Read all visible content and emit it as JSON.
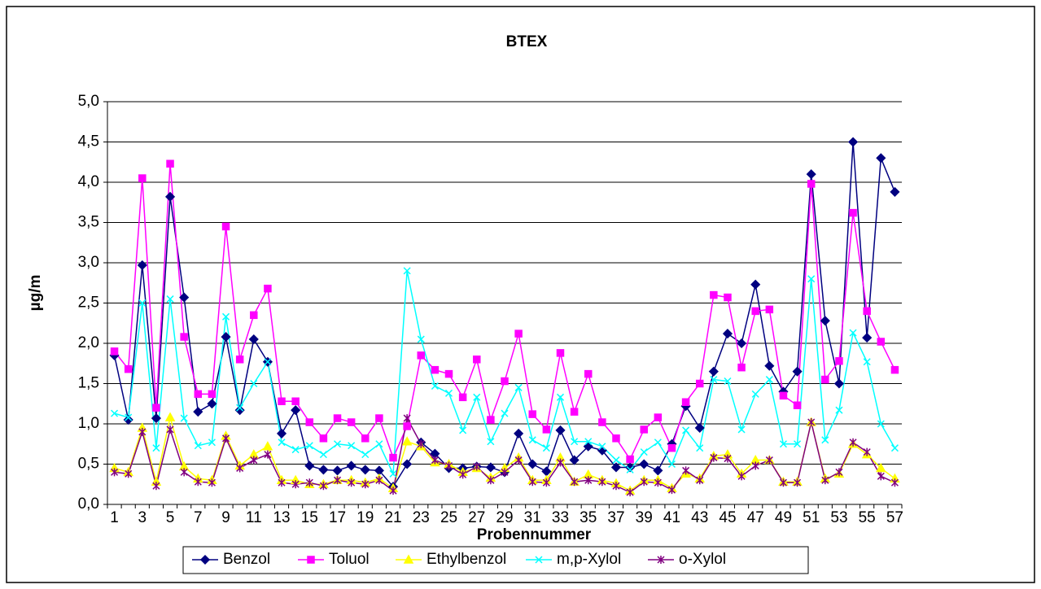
{
  "chart_data": {
    "type": "line",
    "title": "BTEX",
    "x_label": "Probennummer",
    "y_label": "µg/m",
    "categories": [
      1,
      null,
      3,
      null,
      5,
      null,
      7,
      null,
      9,
      null,
      11,
      null,
      13,
      null,
      15,
      null,
      17,
      null,
      19,
      null,
      21,
      null,
      23,
      null,
      25,
      null,
      27,
      null,
      29,
      null,
      31,
      null,
      33,
      null,
      35,
      null,
      37,
      null,
      39,
      null,
      41,
      null,
      43,
      null,
      45,
      null,
      47,
      null,
      49,
      null,
      51,
      null,
      53,
      null,
      55,
      null,
      57
    ],
    "ylim": [
      0,
      5
    ],
    "yticks": [
      {
        "value": 0,
        "label": "0,0"
      },
      {
        "value": 0.5,
        "label": "0,5"
      },
      {
        "value": 1,
        "label": "1,0"
      },
      {
        "value": 1.5,
        "label": "1,5"
      },
      {
        "value": 2,
        "label": "2,0"
      },
      {
        "value": 2.5,
        "label": "2,5"
      },
      {
        "value": 3,
        "label": "3,0"
      },
      {
        "value": 3.5,
        "label": "3,5"
      },
      {
        "value": 4,
        "label": "4,0"
      },
      {
        "value": 4.5,
        "label": "4,5"
      },
      {
        "value": 5,
        "label": "5,0"
      }
    ],
    "grid": true,
    "legend": "bottom",
    "series": [
      {
        "name": "Benzol",
        "color": "#000080",
        "values": [
          1.85,
          1.05,
          2.97,
          1.07,
          3.82,
          2.57,
          1.15,
          1.25,
          2.08,
          1.17,
          2.05,
          1.77,
          0.88,
          1.17,
          0.48,
          0.43,
          0.42,
          0.48,
          0.43,
          0.42,
          0.22,
          0.5,
          0.77,
          0.63,
          0.45,
          0.45,
          0.47,
          0.46,
          0.4,
          0.88,
          0.5,
          0.41,
          0.92,
          0.55,
          0.72,
          0.67,
          0.46,
          0.46,
          0.5,
          0.42,
          0.75,
          1.22,
          0.95,
          1.65,
          2.12,
          2.0,
          2.73,
          1.72,
          1.4,
          1.65,
          4.1,
          2.28,
          1.5,
          4.5,
          2.07,
          4.3,
          3.88
        ]
      },
      {
        "name": "Toluol",
        "color": "#ff00ff",
        "values": [
          1.9,
          1.68,
          4.05,
          1.2,
          4.23,
          2.08,
          1.37,
          1.37,
          3.45,
          1.8,
          2.35,
          2.68,
          1.28,
          1.28,
          1.02,
          0.82,
          1.07,
          1.02,
          0.82,
          1.07,
          0.58,
          0.97,
          1.85,
          1.67,
          1.62,
          1.33,
          1.8,
          1.05,
          1.53,
          2.12,
          1.12,
          0.93,
          1.88,
          1.15,
          1.62,
          1.02,
          0.82,
          0.56,
          0.93,
          1.08,
          0.7,
          1.27,
          1.5,
          2.6,
          2.57,
          1.7,
          2.4,
          2.42,
          1.35,
          1.23,
          3.98,
          1.55,
          1.78,
          3.62,
          2.4,
          2.02,
          1.67
        ]
      },
      {
        "name": "Ethylbenzol",
        "color": "#ffff00",
        "values": [
          0.45,
          0.4,
          0.95,
          0.28,
          1.08,
          0.47,
          0.32,
          0.3,
          0.85,
          0.48,
          0.62,
          0.72,
          0.3,
          0.3,
          0.25,
          0.25,
          0.3,
          0.3,
          0.27,
          0.32,
          0.2,
          0.78,
          0.72,
          0.52,
          0.5,
          0.4,
          0.45,
          0.33,
          0.45,
          0.58,
          0.3,
          0.3,
          0.58,
          0.28,
          0.37,
          0.3,
          0.26,
          0.17,
          0.3,
          0.3,
          0.2,
          0.38,
          0.32,
          0.6,
          0.62,
          0.38,
          0.55,
          0.55,
          0.28,
          0.28,
          1.02,
          0.32,
          0.38,
          0.75,
          0.62,
          0.45,
          0.32
        ]
      },
      {
        "name": "m,p-Xylol",
        "color": "#00ffff",
        "values": [
          1.13,
          1.08,
          2.5,
          0.7,
          2.55,
          1.07,
          0.73,
          0.77,
          2.33,
          1.2,
          1.5,
          1.77,
          0.77,
          0.68,
          0.73,
          0.62,
          0.75,
          0.73,
          0.62,
          0.75,
          0.38,
          2.9,
          2.05,
          1.47,
          1.38,
          0.92,
          1.33,
          0.78,
          1.13,
          1.45,
          0.8,
          0.7,
          1.33,
          0.78,
          0.78,
          0.72,
          0.55,
          0.43,
          0.65,
          0.77,
          0.5,
          0.92,
          0.7,
          1.55,
          1.53,
          0.93,
          1.37,
          1.55,
          0.75,
          0.75,
          2.8,
          0.8,
          1.17,
          2.13,
          1.77,
          1.0,
          0.7
        ]
      },
      {
        "name": "o-Xylol",
        "color": "#800080",
        "values": [
          0.4,
          0.38,
          0.9,
          0.23,
          0.93,
          0.4,
          0.28,
          0.27,
          0.82,
          0.45,
          0.55,
          0.62,
          0.27,
          0.25,
          0.27,
          0.23,
          0.3,
          0.27,
          0.25,
          0.3,
          0.17,
          1.07,
          0.75,
          0.55,
          0.48,
          0.37,
          0.47,
          0.3,
          0.4,
          0.55,
          0.28,
          0.27,
          0.52,
          0.28,
          0.3,
          0.28,
          0.23,
          0.15,
          0.28,
          0.27,
          0.18,
          0.42,
          0.3,
          0.58,
          0.57,
          0.35,
          0.48,
          0.55,
          0.27,
          0.27,
          1.02,
          0.3,
          0.4,
          0.77,
          0.65,
          0.35,
          0.27
        ]
      }
    ]
  }
}
